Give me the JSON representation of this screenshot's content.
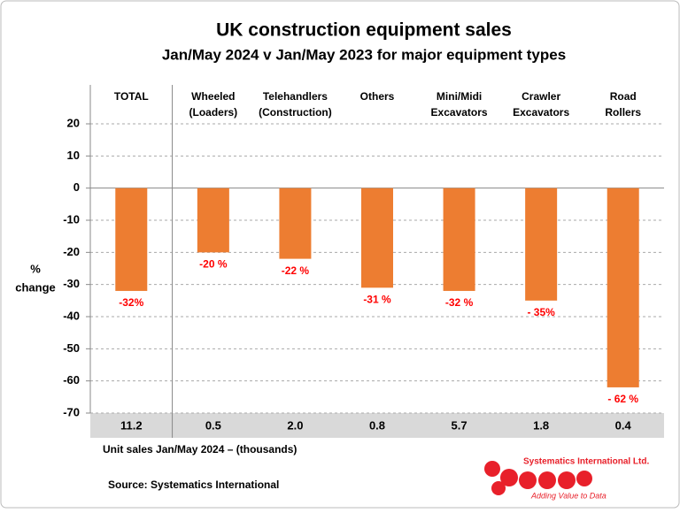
{
  "chart_data": {
    "type": "bar",
    "title": "UK construction equipment sales",
    "subtitle": "Jan/May 2024  v  Jan/May 2023 for major equipment types",
    "y_label": [
      "%",
      "change"
    ],
    "categories": [
      [
        "TOTAL"
      ],
      [
        "Wheeled",
        "(Loaders)"
      ],
      [
        "Telehandlers",
        "(Construction)"
      ],
      [
        "Others"
      ],
      [
        "Mini/Midi",
        "Excavators"
      ],
      [
        "Crawler",
        "Excavators"
      ],
      [
        "Road",
        "Rollers"
      ]
    ],
    "values": [
      -32,
      -20,
      -22,
      -31,
      -32,
      -35,
      -62
    ],
    "value_labels": [
      "-32%",
      "-20 %",
      "-22 %",
      "-31 %",
      "-32 %",
      "- 35%",
      "- 62 %"
    ],
    "color": "#ed7d31",
    "label_color": "#ff0000",
    "ylim": [
      -70,
      20
    ],
    "yticks": [
      20,
      10,
      0,
      -10,
      -20,
      -30,
      -40,
      -50,
      -60,
      -70
    ],
    "grid": true,
    "unit_sales": [
      "11.2",
      "0.5",
      "2.0",
      "0.8",
      "5.7",
      "1.8",
      "0.4"
    ],
    "unit_sales_label": "Unit sales Jan/May 2024 –  (thousands)",
    "source": "Source: Systematics International",
    "logo": [
      "Systematics International Ltd.",
      "Adding Value to Data"
    ]
  }
}
